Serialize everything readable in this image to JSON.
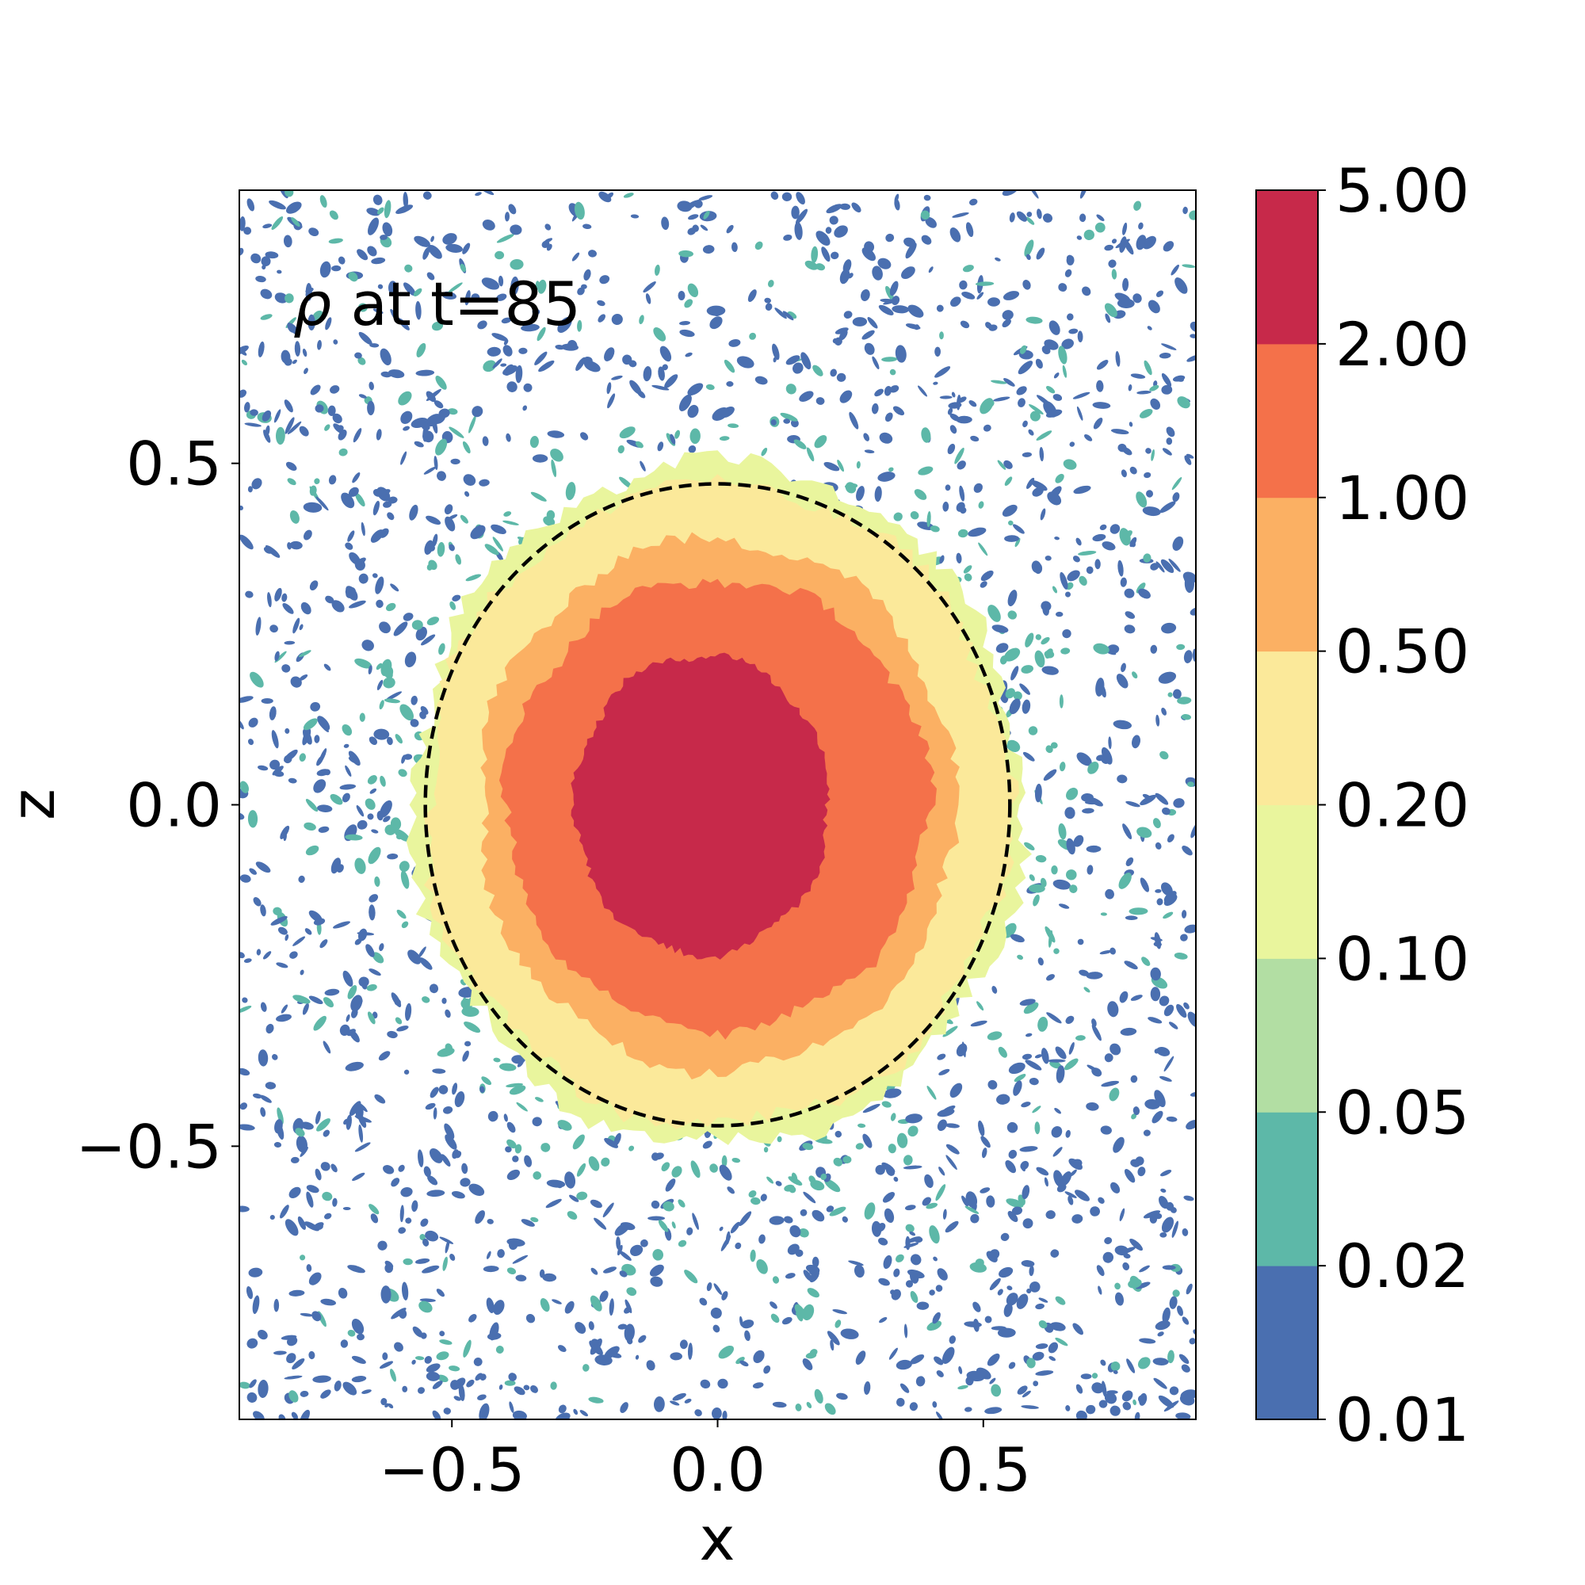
{
  "chart_data": {
    "type": "contour",
    "annotation": "ρ at t=85",
    "annotation_parts": {
      "symbol": "ρ",
      "rest": " at t=85"
    },
    "xlabel": "x",
    "ylabel": "z",
    "xlim": [
      -0.9,
      0.9
    ],
    "ylim": [
      -0.9,
      0.9
    ],
    "xticks": [
      -0.5,
      0.0,
      0.5
    ],
    "xtick_labels": [
      "−0.5",
      "0.0",
      "0.5"
    ],
    "yticks": [
      0.5,
      0.0,
      -0.5
    ],
    "ytick_labels": [
      "0.5",
      "0.0",
      "−0.5"
    ],
    "grid": false,
    "colorbar": {
      "levels": [
        0.01,
        0.02,
        0.05,
        0.1,
        0.2,
        0.5,
        1.0,
        2.0,
        5.0
      ],
      "tick_labels": [
        "0.01",
        "0.02",
        "0.05",
        "0.10",
        "0.20",
        "0.50",
        "1.00",
        "2.00",
        "5.00"
      ],
      "colors": [
        "#4a6fb0",
        "#5db8a8",
        "#b2dea3",
        "#e9f59d",
        "#fbe99a",
        "#fbb063",
        "#f4714a",
        "#c7294a"
      ]
    },
    "dashed_circle": {
      "center_x": 0.0,
      "center_z": 0.0,
      "radius_x": 0.55,
      "radius_z": 0.47,
      "color": "#000000"
    },
    "contour_regions": [
      {
        "level_index": 3,
        "center_x": 0.0,
        "center_z": 0.0,
        "radius_x": 0.575,
        "radius_z": 0.5
      },
      {
        "level_index": 4,
        "center_x": 0.0,
        "center_z": 0.0,
        "radius_x": 0.55,
        "radius_z": 0.47
      },
      {
        "level_index": 5,
        "center_x": 0.0,
        "center_z": 0.0,
        "radius_x": 0.45,
        "radius_z": 0.39
      },
      {
        "level_index": 6,
        "center_x": 0.0,
        "center_z": 0.0,
        "radius_x": 0.4,
        "radius_z": 0.33
      },
      {
        "level_index": 7,
        "center_x": -0.03,
        "center_z": 0.0,
        "radius_x": 0.24,
        "radius_z": 0.22
      }
    ]
  }
}
